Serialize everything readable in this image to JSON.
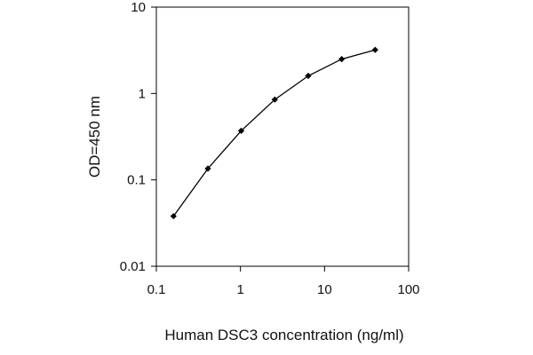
{
  "chart_data": {
    "type": "line",
    "title": "",
    "xlabel": "Human DSC3 concentration (ng/ml)",
    "ylabel": "OD=450 nm",
    "x_scale": "log",
    "y_scale": "log",
    "xlim": [
      0.1,
      100
    ],
    "ylim": [
      0.01,
      10
    ],
    "x_ticks": [
      "0.1",
      "1",
      "10",
      "100"
    ],
    "y_ticks": [
      "10",
      "1",
      "0.1",
      "0.01"
    ],
    "grid": false,
    "series": [
      {
        "x": [
          0.16,
          0.41,
          1.02,
          2.56,
          6.4,
          16,
          40
        ],
        "y": [
          0.038,
          0.135,
          0.37,
          0.85,
          1.6,
          2.5,
          3.2
        ]
      }
    ],
    "colors": {
      "line": "#000000",
      "marker": "#000000",
      "frame": "#000000"
    }
  }
}
